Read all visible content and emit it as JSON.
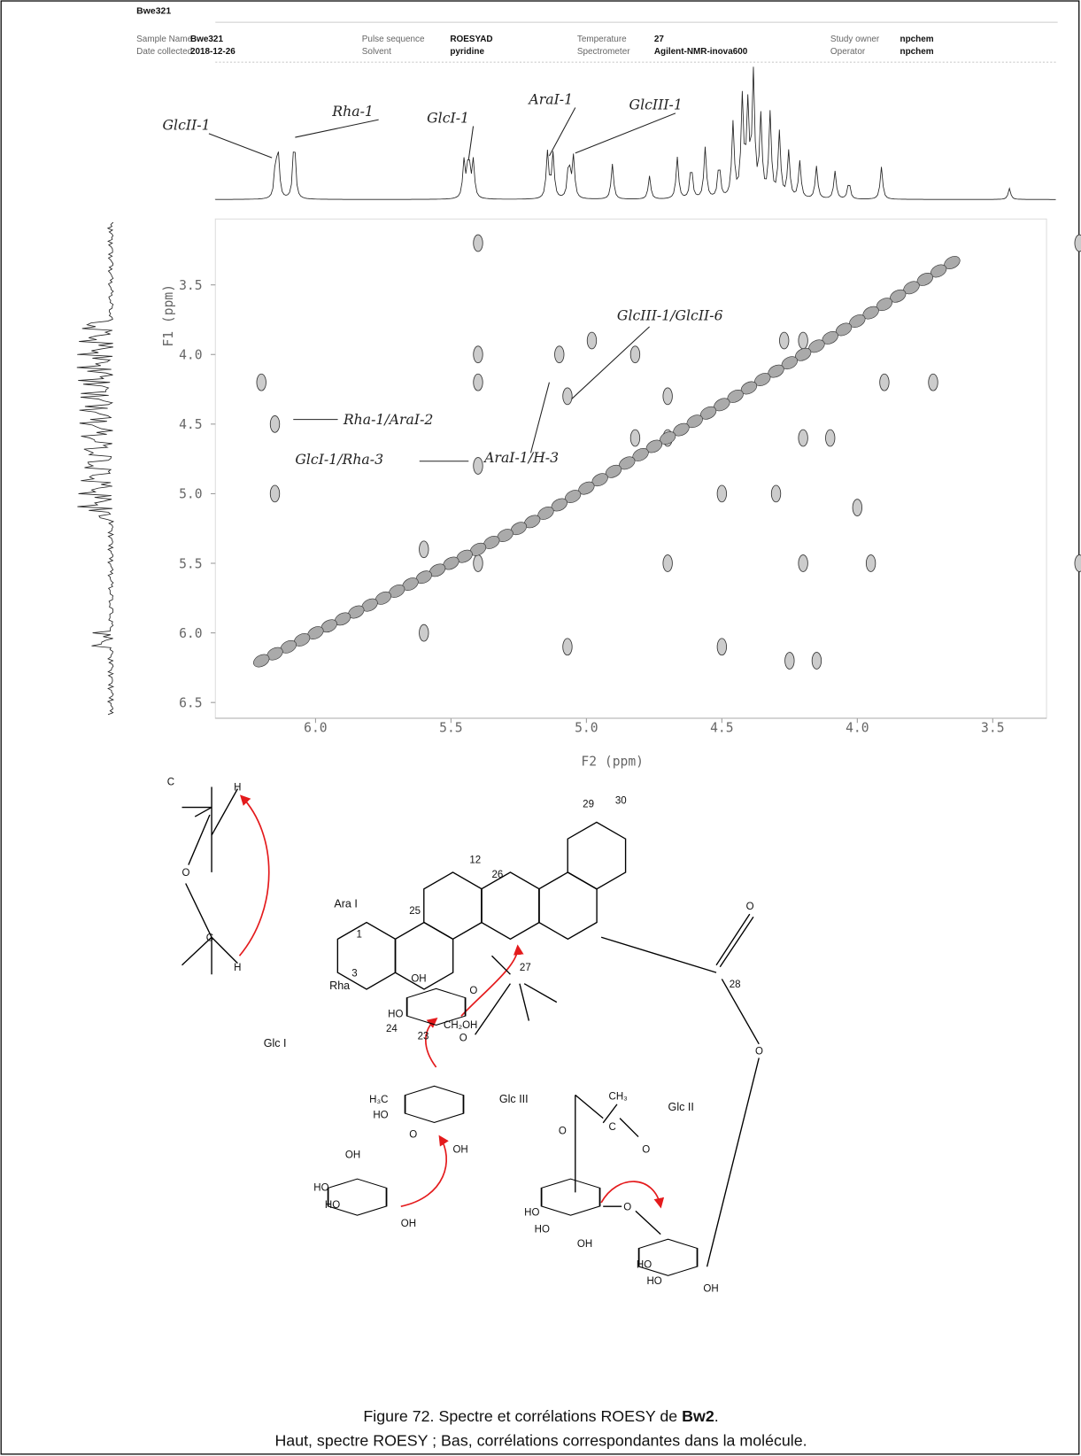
{
  "header": {
    "id": "Bwe321",
    "fields": [
      {
        "label": "Sample Name",
        "value": "Bwe321"
      },
      {
        "label": "Date collected",
        "value": "2018-12-26"
      },
      {
        "label": "Pulse sequence",
        "value": "ROESYAD"
      },
      {
        "label": "Solvent",
        "value": "pyridine"
      },
      {
        "label": "Temperature",
        "value": "27"
      },
      {
        "label": "Spectrometer",
        "value": "Agilent-NMR-inova600"
      },
      {
        "label": "Study owner",
        "value": "npchem"
      },
      {
        "label": "Operator",
        "value": "npchem"
      }
    ]
  },
  "spectrum": {
    "x_label": "F2 (ppm)",
    "y_label": "F1 (ppm)",
    "xticks": [
      {
        "value": 6,
        "label": "6.0"
      },
      5.5,
      {
        "value": 5,
        "label": "5.0"
      },
      4.5,
      {
        "value": 4,
        "label": "4.0"
      },
      3.5
    ],
    "yticks": [
      3.5,
      {
        "value": 4,
        "label": "4.0"
      },
      4.5,
      {
        "value": 5,
        "label": "5.0"
      },
      5.5,
      {
        "value": 6,
        "label": "6.0"
      },
      6.5
    ],
    "peak_labels": [
      "GlcII-1",
      "Rha-1",
      "GlcI-1",
      "AraI-1",
      "GlcIII-1"
    ],
    "correlation_labels": [
      "Rha-1/AraI-2",
      "GlcI-1/Rha-3",
      "AraI-1/H-3",
      "GlcIII-1/GlcII-6"
    ]
  },
  "structure": {
    "scheme_labels": [
      "C",
      "O",
      "C",
      "H",
      "H"
    ],
    "atom_labels": [
      "29",
      "30",
      "12",
      "25",
      "26",
      "1",
      "3",
      "27",
      "28",
      "24",
      "23",
      "CH₂OH",
      "O",
      "O",
      "O",
      "OH",
      "HO",
      "O",
      "H₃C",
      "HO",
      "OH",
      "O",
      "OH",
      "HO",
      "HO",
      "OH",
      "O",
      "C",
      "CH₃",
      "O",
      "HO",
      "HO",
      "OH",
      "O",
      "HO",
      "HO",
      "OH"
    ],
    "sugar_labels": [
      "Ara I",
      "Rha",
      "Glc I",
      "Glc III",
      "Glc II"
    ]
  },
  "caption": {
    "line1": [
      "Figure 72. Spectre et corrélations ROESY de ",
      "Bw2",
      "."
    ],
    "line2": "Haut, spectre ROESY ; Bas, corrélations correspondantes dans la molécule."
  }
}
